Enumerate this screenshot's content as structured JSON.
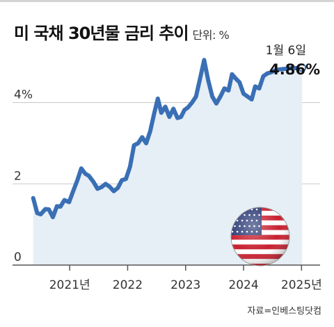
{
  "header": {
    "title": "미 국채 30년물 금리 추이",
    "unit": "단위: %"
  },
  "source": "자료=인베스팅닷컴",
  "colors": {
    "line": "#3a6fb5",
    "area": "#e6eef6",
    "grid": "#c8c8c8",
    "axis": "#555555"
  },
  "flag_icon": "us-flag-icon",
  "chart_data": {
    "type": "area",
    "title": "미 국채 30년물 금리 추이",
    "unit": "%",
    "grid": true,
    "ylim": [
      0,
      5.5
    ],
    "yticks": [
      {
        "value": 0,
        "label": "0"
      },
      {
        "value": 2,
        "label": "2"
      },
      {
        "value": 4,
        "label": "4%"
      }
    ],
    "xlim": [
      2020.35,
      2025.08
    ],
    "xticks": [
      {
        "value": 2021.0,
        "label": "2021년"
      },
      {
        "value": 2022.0,
        "label": "2022"
      },
      {
        "value": 2023.0,
        "label": "2023"
      },
      {
        "value": 2024.0,
        "label": "2024"
      },
      {
        "value": 2025.0,
        "label": "2025년"
      }
    ],
    "annotation": {
      "date": "1월 6일",
      "value_label": "4.86%",
      "x": 2025.01,
      "y": 4.86
    },
    "series": [
      {
        "x": [
          2020.37,
          2020.44,
          2020.5,
          2020.58,
          2020.64,
          2020.71,
          2020.78,
          2020.84,
          2020.91,
          2020.99,
          2021.06,
          2021.13,
          2021.2,
          2021.27,
          2021.33,
          2021.41,
          2021.48,
          2021.55,
          2021.62,
          2021.69,
          2021.76,
          2021.83,
          2021.9,
          2021.97,
          2022.04,
          2022.11,
          2022.18,
          2022.25,
          2022.32,
          2022.39,
          2022.46,
          2022.52,
          2022.58,
          2022.65,
          2022.72,
          2022.79,
          2022.86,
          2022.92,
          2022.98,
          2023.04,
          2023.11,
          2023.18,
          2023.25,
          2023.32,
          2023.39,
          2023.46,
          2023.53,
          2023.6,
          2023.67,
          2023.74,
          2023.8,
          2023.86,
          2023.93,
          2024.0,
          2024.07,
          2024.14,
          2024.2,
          2024.27,
          2024.34,
          2024.41,
          2024.48,
          2024.55,
          2024.62,
          2024.7,
          2024.77,
          2024.84,
          2024.9,
          2024.96,
          2025.01
        ],
        "y": [
          1.65,
          1.28,
          1.25,
          1.38,
          1.37,
          1.18,
          1.45,
          1.44,
          1.6,
          1.55,
          1.82,
          2.08,
          2.38,
          2.25,
          2.2,
          2.05,
          1.88,
          1.92,
          2.0,
          1.93,
          1.82,
          1.9,
          2.09,
          2.12,
          2.42,
          2.95,
          3.0,
          3.15,
          3.0,
          3.3,
          3.75,
          4.1,
          3.75,
          3.9,
          3.65,
          3.85,
          3.62,
          3.65,
          3.82,
          3.88,
          4.0,
          4.15,
          4.6,
          5.05,
          4.55,
          4.15,
          3.98,
          4.15,
          4.35,
          4.3,
          4.7,
          4.6,
          4.5,
          4.22,
          4.15,
          4.08,
          4.4,
          4.35,
          4.65,
          4.72,
          4.75,
          4.8,
          4.82,
          4.83,
          4.84,
          4.85,
          4.85,
          4.86,
          4.86
        ]
      }
    ]
  }
}
